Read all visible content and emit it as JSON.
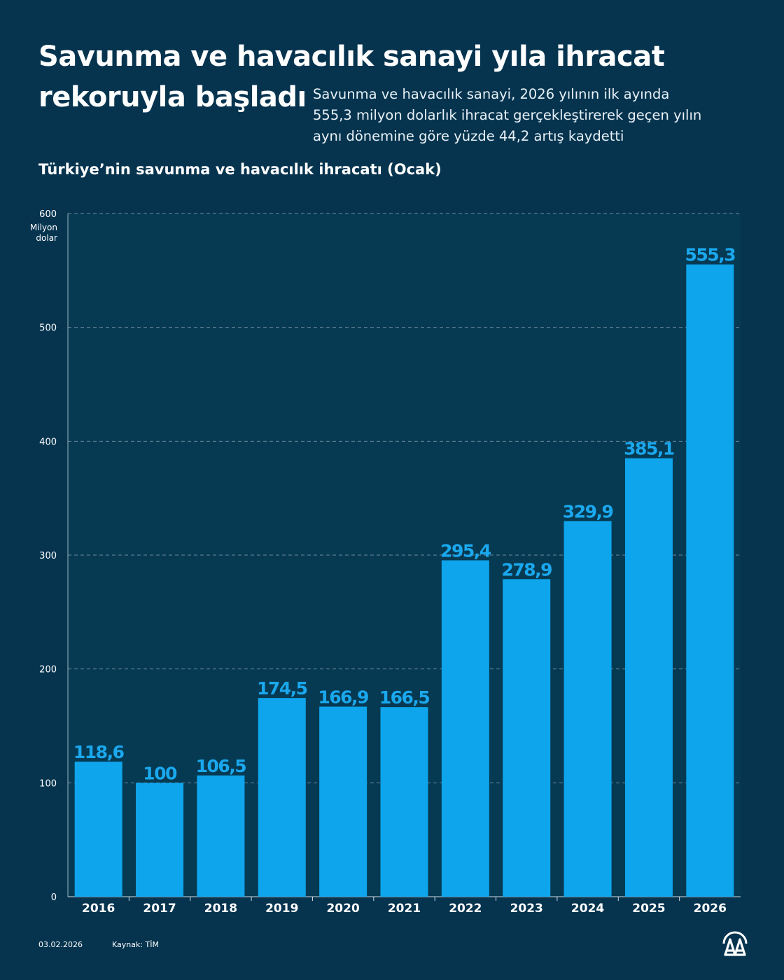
{
  "header": {
    "title_line1": "Savunma ve havacılık sanayi yıla ihracat",
    "title_line2": "rekoruyla başladı",
    "description_lines": [
      "Savunma ve havacılık sanayi, 2026 yılının ilk ayında",
      "555,3 milyon dolarlık ihracat gerçekleştirerek geçen yılın",
      "aynı dönemine göre yüzde 44,2 artış kaydetti"
    ],
    "subtitle": "Türkiye’nin savunma ve havacılık ihracatı (Ocak)"
  },
  "chart_data": {
    "type": "bar",
    "title": "Türkiye’nin savunma ve havacılık ihracatı (Ocak)",
    "ylabel": "Milyon dolar",
    "ylabel_lines": [
      "Milyon",
      "dolar"
    ],
    "xlabel": "",
    "categories": [
      "2016",
      "2017",
      "2018",
      "2019",
      "2020",
      "2021",
      "2022",
      "2023",
      "2024",
      "2025",
      "2026"
    ],
    "values": [
      118.6,
      100,
      106.5,
      174.5,
      166.9,
      166.5,
      295.4,
      278.9,
      329.9,
      385.1,
      555.3
    ],
    "value_labels": [
      "118,6",
      "100",
      "106,5",
      "174,5",
      "166,9",
      "166,5",
      "295,4",
      "278,9",
      "329,9",
      "385,1",
      "555,3"
    ],
    "ylim": [
      0,
      600
    ],
    "yticks": [
      0,
      100,
      200,
      300,
      400,
      500,
      600
    ],
    "grid": true,
    "bar_color": "#0ea5ec",
    "label_color": "#1aa8ee",
    "plot_bg": "#063a52",
    "grid_color": "#6d8a9c"
  },
  "footer": {
    "date": "03.02.2026",
    "source": "Kaynak: TİM",
    "logo": "AA"
  }
}
